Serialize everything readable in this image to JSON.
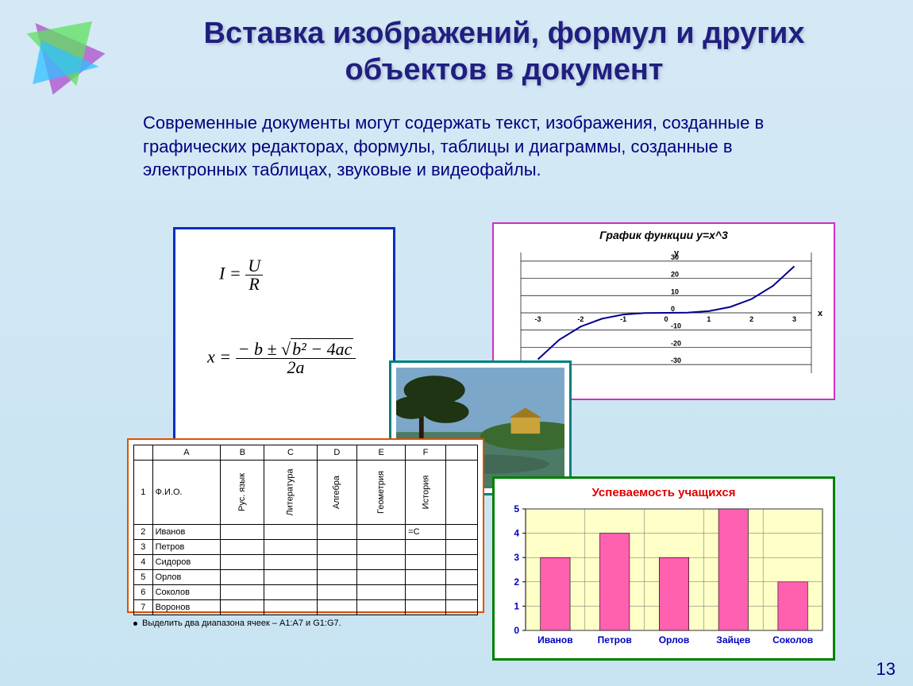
{
  "title": "Вставка изображений, формул и других объектов в документ",
  "body": "Современные документы могут содержать текст, изображения, созданные в графических редакторах, формулы, таблицы и диаграммы, созданные в электронных таблицах, звуковые и видеофайлы.",
  "slide_number": "13",
  "decor": {
    "triangle_colors": [
      "#b060d0",
      "#5fe05f",
      "#30c0ff"
    ]
  },
  "formula": {
    "border_color": "#0030c0",
    "eq1": {
      "lhs": "I",
      "num": "U",
      "den": "R"
    },
    "eq2": {
      "lhs": "x",
      "num_a": "− b ±",
      "num_rad": "b² − 4ac",
      "den": "2a"
    }
  },
  "graph": {
    "title": "График функции y=x^3",
    "border_color": "#d030c0",
    "x_label": "x",
    "y_label": "y",
    "x_ticks": [
      -3,
      -2,
      -1,
      0,
      1,
      2,
      3
    ],
    "y_ticks": [
      -30,
      -20,
      -10,
      0,
      10,
      20,
      30
    ],
    "xlim": [
      -3.4,
      3.4
    ],
    "ylim": [
      -35,
      35
    ],
    "line_color": "#000090",
    "line_width": 2,
    "grid_color": "#000",
    "axis_color": "#000",
    "data": [
      [
        -3,
        -27
      ],
      [
        -2.5,
        -15.6
      ],
      [
        -2,
        -8
      ],
      [
        -1.5,
        -3.4
      ],
      [
        -1,
        -1
      ],
      [
        -0.5,
        -0.12
      ],
      [
        0,
        0
      ],
      [
        0.5,
        0.12
      ],
      [
        1,
        1
      ],
      [
        1.5,
        3.4
      ],
      [
        2,
        8
      ],
      [
        2.5,
        15.6
      ],
      [
        3,
        27
      ]
    ]
  },
  "photo": {
    "border_color": "#008080",
    "sky": "#7da7c9",
    "water": "#4b7a66",
    "hill": "#3b6a30",
    "tree": "#1e3412",
    "building": "#caa33a"
  },
  "table": {
    "border_color": "#e05000",
    "cols": [
      "",
      "A",
      "B",
      "C",
      "D",
      "E",
      "F",
      ""
    ],
    "head_row": [
      "1",
      "Ф.И.О.",
      "Рус. язык",
      "Литература",
      "Алгебра",
      "Геометрия",
      "История",
      ""
    ],
    "rows": [
      [
        "2",
        "Иванов",
        "",
        "",
        "",
        "",
        "=С",
        ""
      ],
      [
        "3",
        "Петров",
        "",
        "",
        "",
        "",
        "",
        ""
      ],
      [
        "4",
        "Сидоров",
        "",
        "",
        "",
        "",
        "",
        ""
      ],
      [
        "5",
        "Орлов",
        "",
        "",
        "",
        "",
        "",
        ""
      ],
      [
        "6",
        "Соколов",
        "",
        "",
        "",
        "",
        "",
        ""
      ],
      [
        "7",
        "Воронов",
        "",
        "",
        "",
        "",
        "",
        ""
      ]
    ],
    "note": "Выделить два диапазона ячеек – A1:A7 и G1:G7."
  },
  "bar": {
    "title": "Успеваемость учащихся",
    "border_color": "#008000",
    "plot_bg": "#ffffc8",
    "bar_color": "#ff60b0",
    "axis_color": "#000",
    "label_color": "#0000c0",
    "grid_color": "#666",
    "ylim": [
      0,
      5
    ],
    "ytick_step": 1,
    "categories": [
      "Иванов",
      "Петров",
      "Орлов",
      "Зайцев",
      "Соколов"
    ],
    "values": [
      3,
      4,
      3,
      5,
      2
    ],
    "bar_width": 0.5
  }
}
